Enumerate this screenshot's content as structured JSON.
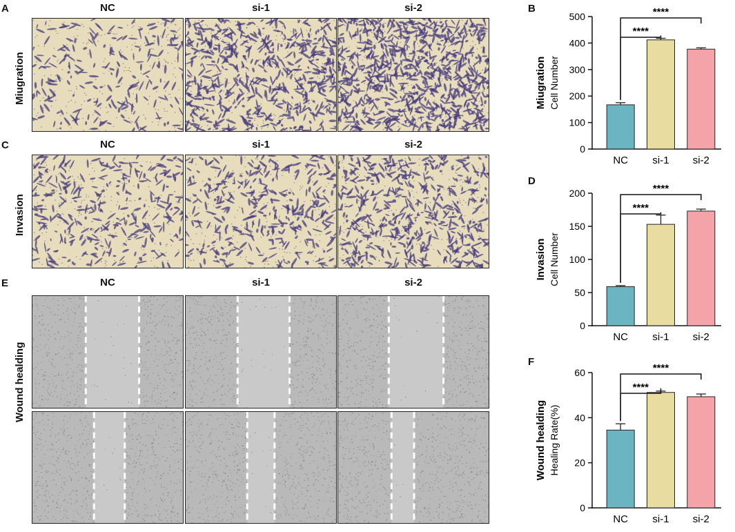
{
  "panels": {
    "A": {
      "letter": "A",
      "row_label": "Miugration",
      "columns": [
        "NC",
        "si-1",
        "si-2"
      ],
      "density": [
        220,
        620,
        850
      ]
    },
    "C": {
      "letter": "C",
      "row_label": "Invasion",
      "columns": [
        "NC",
        "si-1",
        "si-2"
      ],
      "density": [
        330,
        360,
        520
      ]
    },
    "E": {
      "letter": "E",
      "row_label": "Wound healding",
      "columns": [
        "NC",
        "si-1",
        "si-2"
      ]
    }
  },
  "colors": {
    "transwell_bg": "#e7dcbc",
    "cell_stain": "#4a3f7d",
    "wound_bg": "#bdbdbd",
    "wound_gap": "#c9c9c9",
    "bar_nc": "#6bb5c2",
    "bar_si1": "#e8dca1",
    "bar_si2": "#f4a3a8"
  },
  "chart_data": [
    {
      "letter": "B",
      "type": "bar",
      "ylabel_top": "Miugration",
      "ylabel_bottom": "Cell Number",
      "categories": [
        "NC",
        "si-1",
        "si-2"
      ],
      "values": [
        167,
        412,
        377
      ],
      "errors": [
        8,
        6,
        5
      ],
      "ylim": [
        0,
        500
      ],
      "yticks": [
        "0",
        "100",
        "200",
        "300",
        "400",
        "500"
      ],
      "sig_labels": [
        "****",
        "****"
      ],
      "grid": false
    },
    {
      "letter": "D",
      "type": "bar",
      "ylabel_top": "Invasion",
      "ylabel_bottom": "Cell Number",
      "categories": [
        "NC",
        "si-1",
        "si-2"
      ],
      "values": [
        59,
        153,
        173
      ],
      "errors": [
        1.5,
        14,
        3
      ],
      "ylim": [
        0,
        200
      ],
      "yticks": [
        "0",
        "50",
        "100",
        "150",
        "200"
      ],
      "sig_labels": [
        "****",
        "****"
      ],
      "grid": false
    },
    {
      "letter": "F",
      "type": "bar",
      "ylabel_top": "Wound healding",
      "ylabel_bottom": "Healing Rate(%)",
      "categories": [
        "NC",
        "si-1",
        "si-2"
      ],
      "values": [
        34.5,
        51.2,
        49.3
      ],
      "errors": [
        2.8,
        0.6,
        1.2
      ],
      "ylim": [
        0,
        60
      ],
      "yticks": [
        "0",
        "20",
        "40",
        "60"
      ],
      "sig_labels": [
        "****",
        "****"
      ],
      "grid": false
    }
  ]
}
